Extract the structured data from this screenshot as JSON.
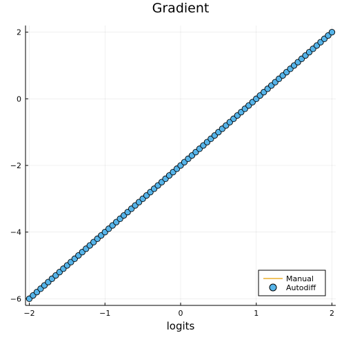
{
  "chart_data": {
    "type": "line",
    "title": "Gradient",
    "xlabel": "logits",
    "ylabel": "",
    "xlim": [
      -2.05,
      2.05
    ],
    "ylim": [
      -6.2,
      2.2
    ],
    "xticks": [
      -2,
      -1,
      0,
      1,
      2
    ],
    "xtick_labels": [
      "−2",
      "−1",
      "0",
      "1",
      "2"
    ],
    "yticks": [
      -6,
      -4,
      -2,
      0,
      2
    ],
    "ytick_labels": [
      "−6",
      "−4",
      "−2",
      "0",
      "2"
    ],
    "grid": true,
    "legend_position": "bottom-right",
    "x_range": {
      "start": -2,
      "stop": 2,
      "count": 81
    },
    "relation": "y = 2x - 2",
    "series": [
      {
        "name": "Manual",
        "style": "line",
        "color": "#e69f00"
      },
      {
        "name": "Autodiff",
        "style": "markers",
        "color": "#56b4e9",
        "marker_edge": "#000000"
      }
    ]
  }
}
